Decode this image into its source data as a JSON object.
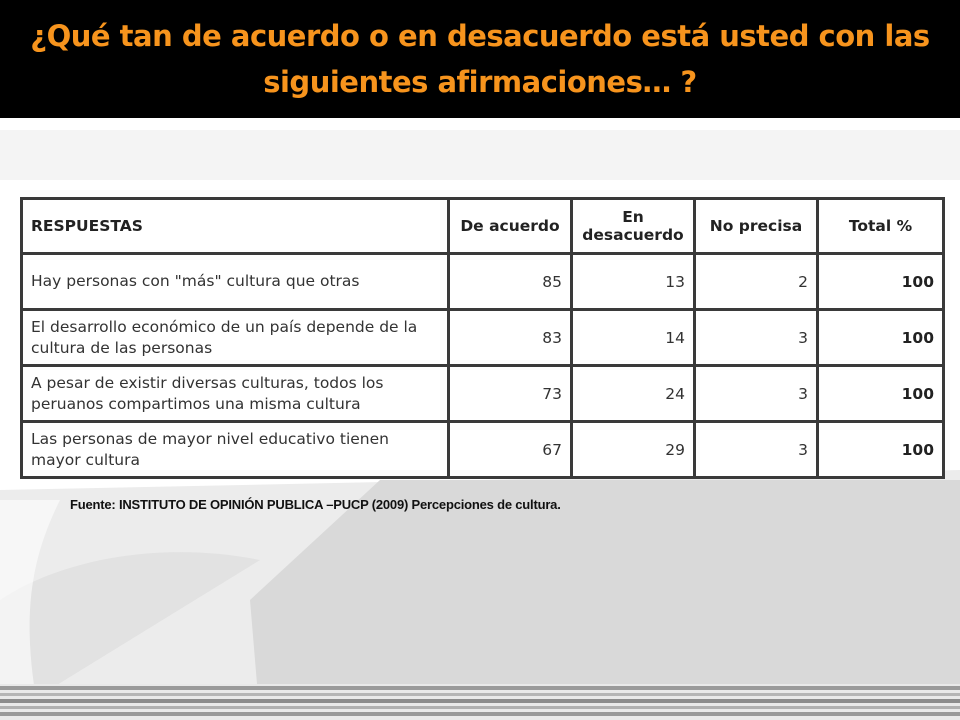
{
  "slide": {
    "title": "¿Qué tan de acuerdo o en desacuerdo está usted con las siguientes afirmaciones… ?"
  },
  "table": {
    "headers": {
      "respuestas": "RESPUESTAS",
      "de_acuerdo": "De acuerdo",
      "en_desacuerdo": "En desacuerdo",
      "no_precisa": "No precisa",
      "total": "Total %"
    },
    "rows": [
      {
        "statement": "Hay personas con \"más\" cultura que otras",
        "de_acuerdo": "85",
        "en_desacuerdo": "13",
        "no_precisa": "2",
        "total": "100"
      },
      {
        "statement": "El desarrollo económico de un país depende de la cultura de las personas",
        "de_acuerdo": "83",
        "en_desacuerdo": "14",
        "no_precisa": "3",
        "total": "100"
      },
      {
        "statement": "A pesar de existir diversas culturas, todos los peruanos compartimos una misma cultura",
        "de_acuerdo": "73",
        "en_desacuerdo": "24",
        "no_precisa": "3",
        "total": "100"
      },
      {
        "statement": "Las personas de mayor nivel educativo tienen mayor cultura",
        "de_acuerdo": "67",
        "en_desacuerdo": "29",
        "no_precisa": "3",
        "total": "100"
      }
    ]
  },
  "source": "Fuente: INSTITUTO DE OPINIÓN PUBLICA –PUCP (2009) Percepciones de cultura.",
  "colors": {
    "title_text": "#F7941D",
    "title_background": "#000000",
    "table_border": "#3a3a3a"
  }
}
